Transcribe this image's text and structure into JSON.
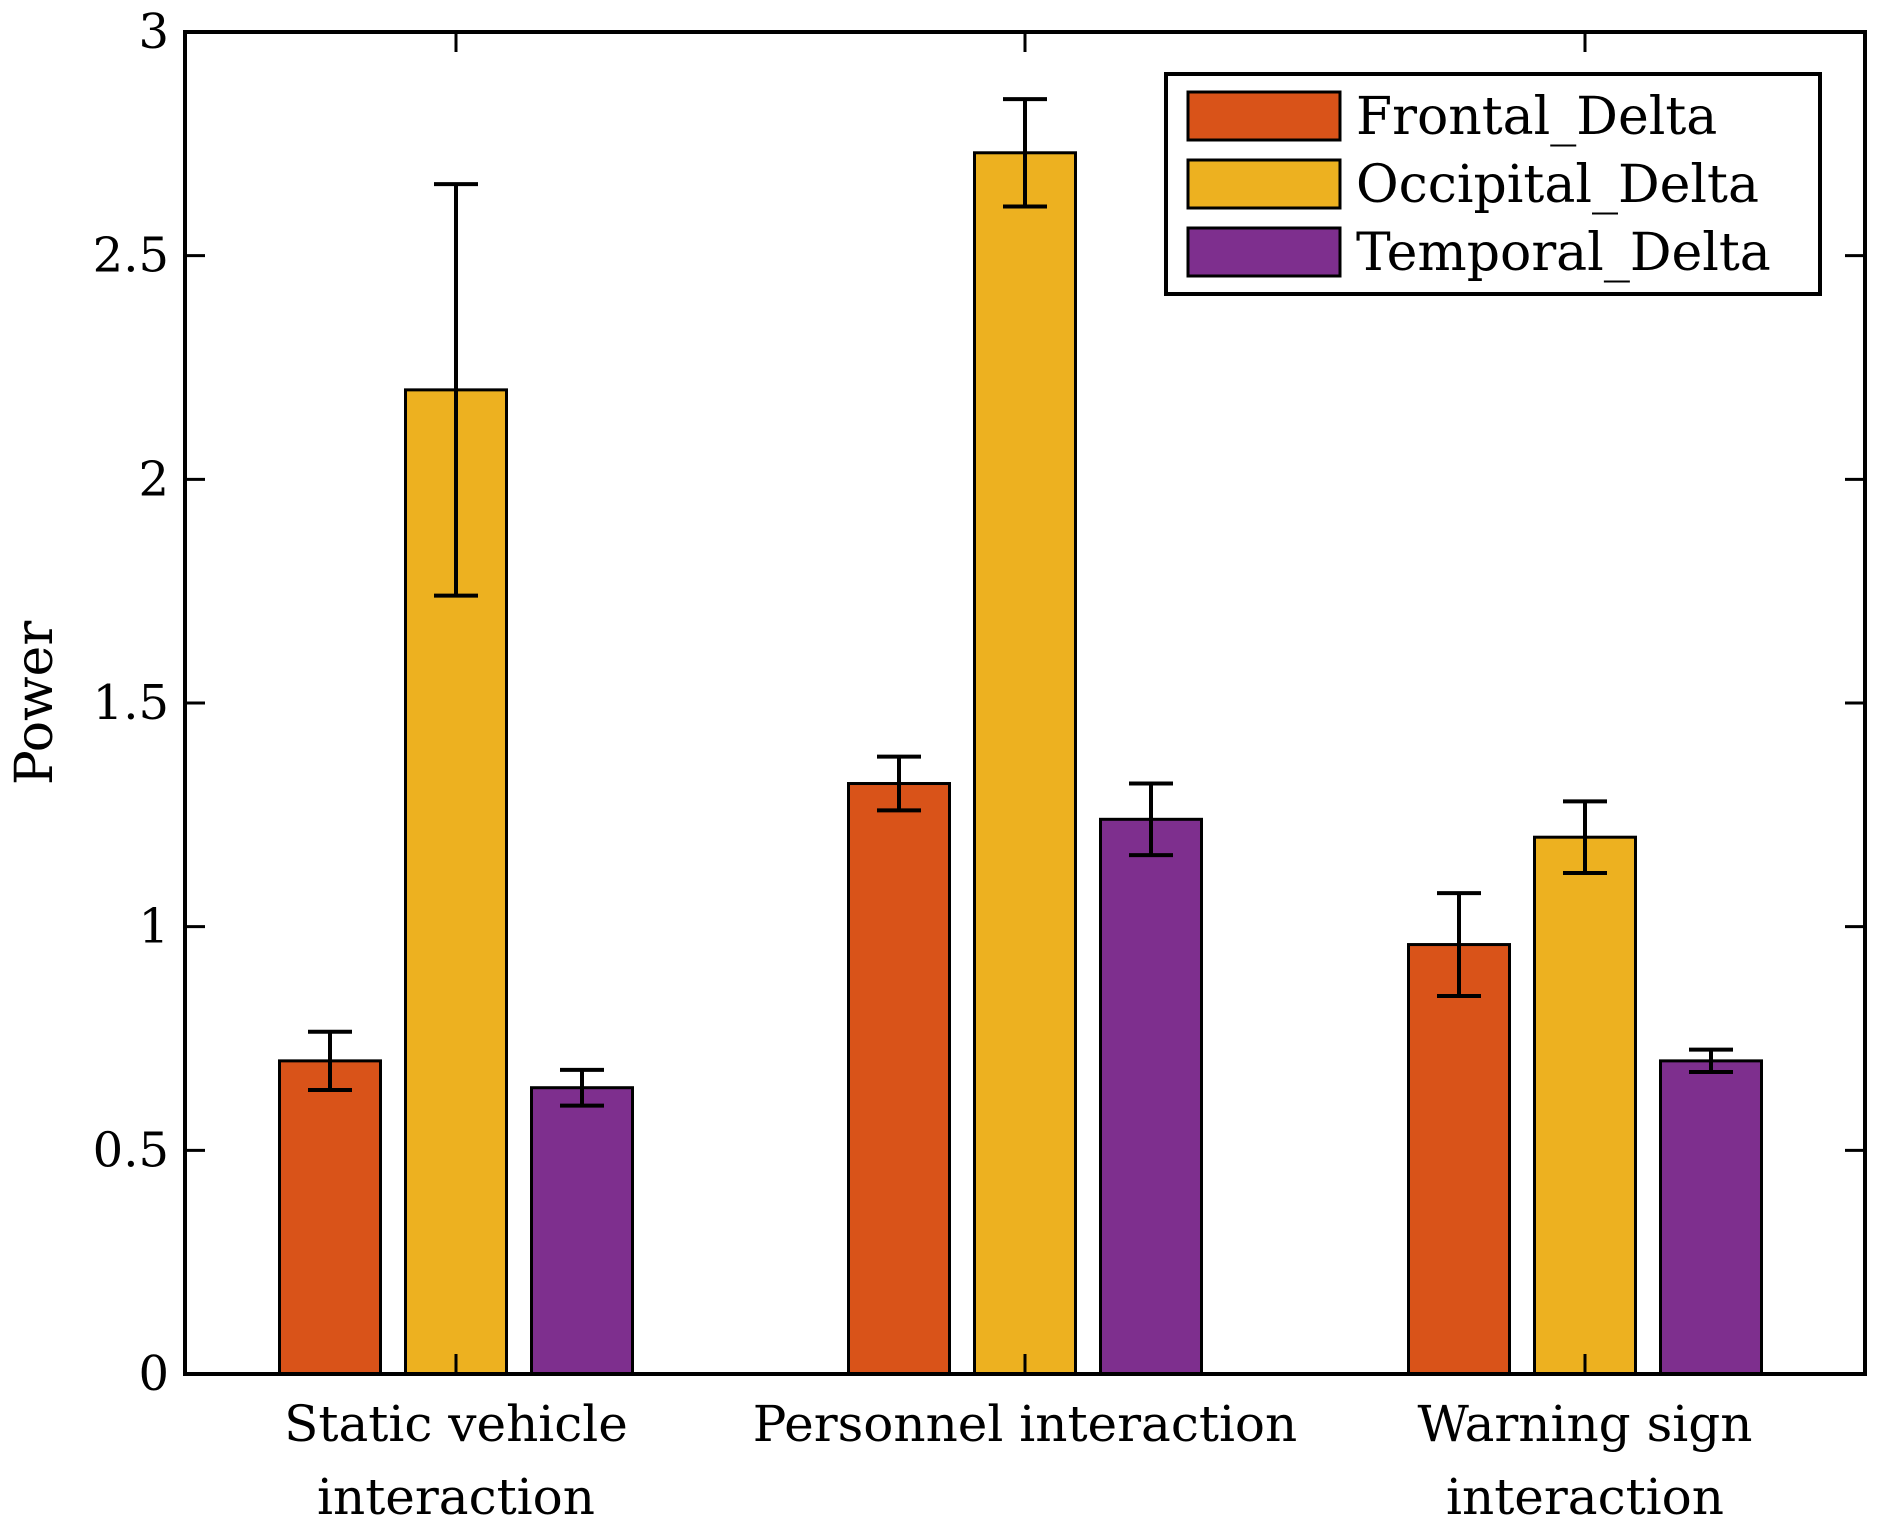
{
  "chart_data": {
    "type": "bar",
    "title": "",
    "xlabel": "",
    "ylabel": "Power",
    "ylim": [
      0,
      3
    ],
    "yticks": [
      0,
      0.5,
      1,
      1.5,
      2,
      2.5,
      3
    ],
    "ytick_labels": [
      "0",
      "0.5",
      "1",
      "1.5",
      "2",
      "2.5",
      "3"
    ],
    "grid": false,
    "legend_position": "top-right",
    "categories": [
      {
        "line1": "Static vehicle",
        "line2": "interaction"
      },
      {
        "line1": "Personnel interaction",
        "line2": ""
      },
      {
        "line1": "Warning sign",
        "line2": "interaction"
      }
    ],
    "series": [
      {
        "name": "Frontal_Delta",
        "color": "#D95319",
        "values": [
          0.7,
          1.32,
          0.96
        ],
        "errors": [
          0.065,
          0.06,
          0.115
        ]
      },
      {
        "name": "Occipital_Delta",
        "color": "#EDB120",
        "values": [
          2.2,
          2.73,
          1.2
        ],
        "errors": [
          0.46,
          0.12,
          0.08
        ]
      },
      {
        "name": "Temporal_Delta",
        "color": "#7E2F8E",
        "values": [
          0.64,
          1.24,
          0.7
        ],
        "errors": [
          0.04,
          0.08,
          0.025
        ]
      }
    ]
  }
}
